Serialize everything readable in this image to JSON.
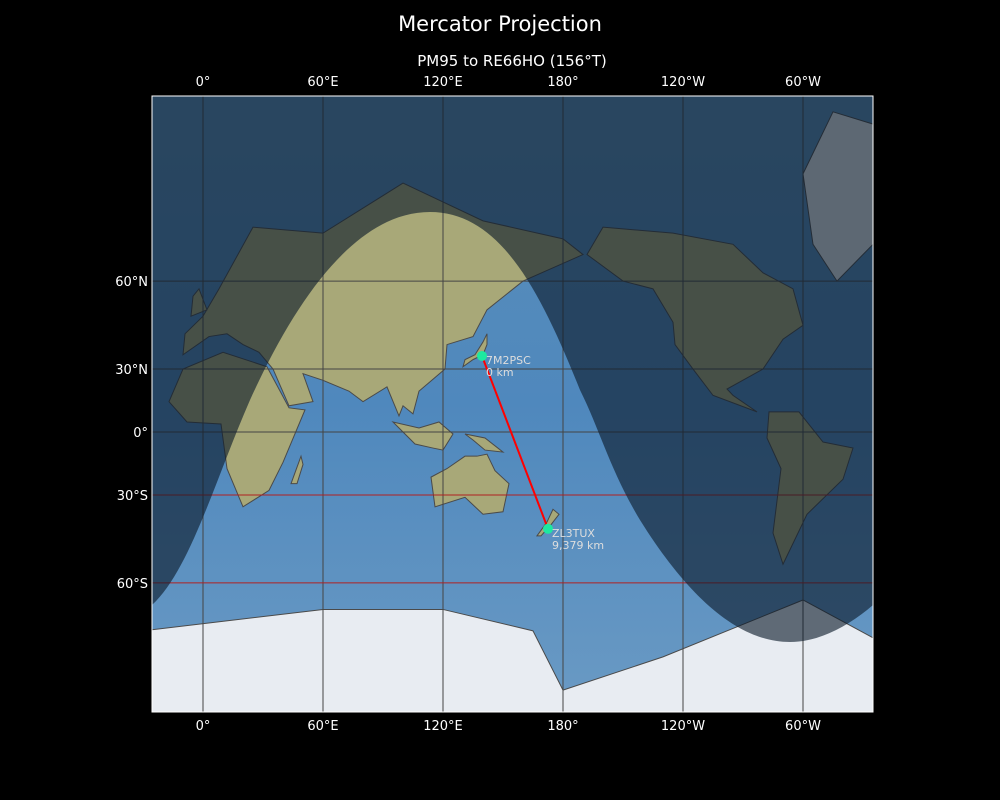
{
  "title": "Mercator Projection",
  "subtitle": "PM95 to RE66HO (156°T)",
  "chart_data": {
    "type": "map",
    "projection": "Mercator",
    "central_longitude": 155,
    "lon_ticks": [
      {
        "lon": 0,
        "label": "0°"
      },
      {
        "lon": 60,
        "label": "60°E"
      },
      {
        "lon": 120,
        "label": "120°E"
      },
      {
        "lon": 180,
        "label": "180°"
      },
      {
        "lon": 240,
        "label": "120°W"
      },
      {
        "lon": 300,
        "label": "60°W"
      }
    ],
    "lat_ticks": [
      {
        "lat": 60,
        "label": "60°N"
      },
      {
        "lat": 30,
        "label": "30°N"
      },
      {
        "lat": 0,
        "label": "0°"
      },
      {
        "lat": -30,
        "label": "30°S"
      },
      {
        "lat": -60,
        "label": "60°S"
      }
    ],
    "grid": true,
    "day_night_shading": true,
    "stations": [
      {
        "call": "7M2PSC",
        "distance": "0 km",
        "lon": 139.5,
        "lat": 35.5
      },
      {
        "call": "ZL3TUX",
        "distance": "9,379 km",
        "lon": 172.5,
        "lat": -43.5
      }
    ],
    "path_color": "#ff0000",
    "marker_color": "#1de9a0"
  }
}
